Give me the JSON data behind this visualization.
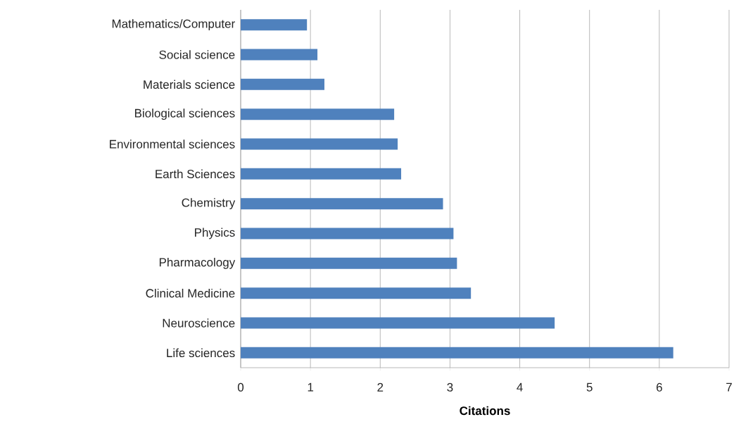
{
  "chart_data": {
    "type": "bar",
    "orientation": "horizontal",
    "xlabel": "Citations",
    "categories": [
      "Mathematics/Computer",
      "Social science",
      "Materials science",
      "Biological sciences",
      "Environmental sciences",
      "Earth Sciences",
      "Chemistry",
      "Physics",
      "Pharmacology",
      "Clinical Medicine",
      "Neuroscience",
      "Life sciences"
    ],
    "values": [
      0.95,
      1.1,
      1.2,
      2.2,
      2.25,
      2.3,
      2.9,
      3.05,
      3.1,
      3.3,
      4.5,
      6.2
    ],
    "color": "#4f81bd",
    "xlim": [
      0,
      7
    ],
    "xticks": [
      0,
      1,
      2,
      3,
      4,
      5,
      6,
      7
    ],
    "grid": "x"
  }
}
